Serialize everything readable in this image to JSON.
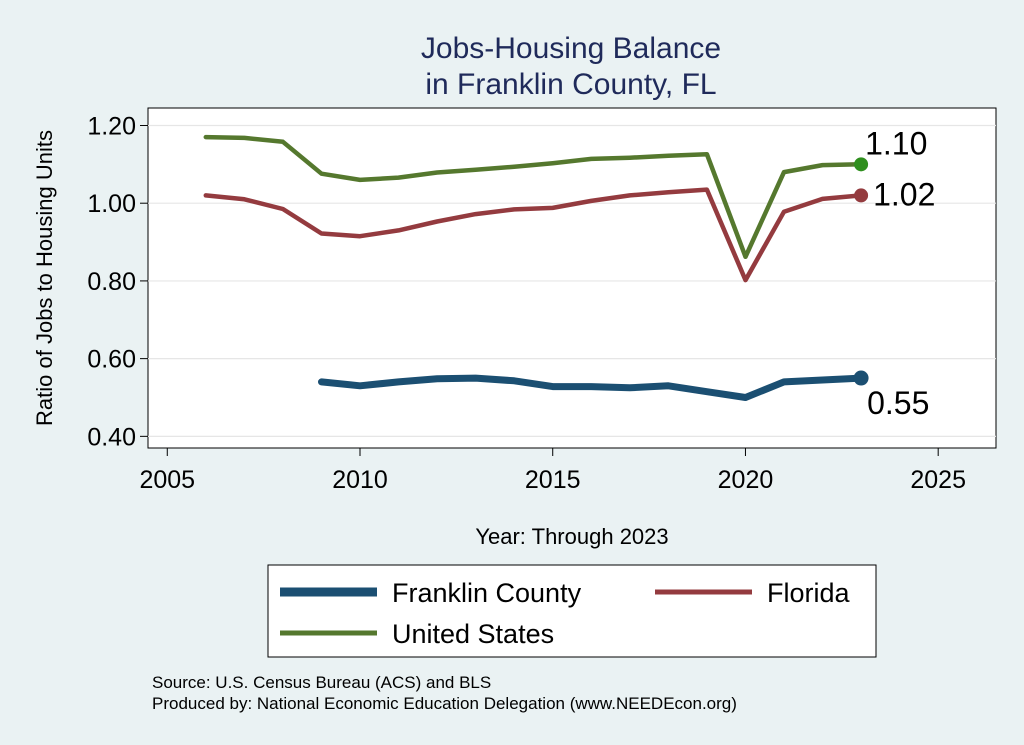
{
  "chart_data": {
    "type": "line",
    "title": [
      "Jobs-Housing Balance",
      "in Franklin County, FL"
    ],
    "xlabel": "Year: Through 2023",
    "ylabel": "Ratio of Jobs to Housing Units",
    "xlim": [
      2004.5,
      2026.5
    ],
    "ylim": [
      0.37,
      1.245
    ],
    "xticks": [
      2005,
      2010,
      2015,
      2020,
      2025
    ],
    "xtick_labels": [
      "2005",
      "2010",
      "2015",
      "2020",
      "2025"
    ],
    "yticks": [
      0.4,
      0.6,
      0.8,
      1.0,
      1.2
    ],
    "ytick_labels": [
      "0.40",
      "0.60",
      "0.80",
      "1.00",
      "1.20"
    ],
    "grid": true,
    "legend_position": "bottom",
    "series": [
      {
        "name": "Franklin County",
        "color": "#1b4f72",
        "x": [
          2009,
          2010,
          2011,
          2012,
          2013,
          2014,
          2015,
          2016,
          2017,
          2018,
          2019,
          2020,
          2021,
          2022,
          2023
        ],
        "y": [
          0.54,
          0.53,
          0.54,
          0.548,
          0.55,
          0.543,
          0.528,
          0.528,
          0.525,
          0.53,
          0.515,
          0.5,
          0.54,
          0.545,
          0.55
        ],
        "end_label": "0.55"
      },
      {
        "name": "Florida",
        "color": "#943b3f",
        "x": [
          2006,
          2007,
          2008,
          2009,
          2010,
          2011,
          2012,
          2013,
          2014,
          2015,
          2016,
          2017,
          2018,
          2019,
          2020,
          2021,
          2022,
          2023
        ],
        "y": [
          1.02,
          1.01,
          0.985,
          0.922,
          0.915,
          0.93,
          0.953,
          0.972,
          0.984,
          0.988,
          1.006,
          1.02,
          1.028,
          1.035,
          0.802,
          0.978,
          1.011,
          1.02
        ],
        "end_label": "1.02"
      },
      {
        "name": "United States",
        "color": "#55782e",
        "x": [
          2006,
          2007,
          2008,
          2009,
          2010,
          2011,
          2012,
          2013,
          2014,
          2015,
          2016,
          2017,
          2018,
          2019,
          2020,
          2021,
          2022,
          2023
        ],
        "y": [
          1.17,
          1.168,
          1.158,
          1.076,
          1.06,
          1.066,
          1.079,
          1.086,
          1.094,
          1.103,
          1.114,
          1.117,
          1.122,
          1.126,
          0.862,
          1.08,
          1.098,
          1.1
        ],
        "end_label": "1.10"
      }
    ],
    "source": "Source: U.S. Census Bureau (ACS) and BLS",
    "produced_by": "Produced by: National Economic Education Delegation (www.NEEDEcon.org)"
  }
}
